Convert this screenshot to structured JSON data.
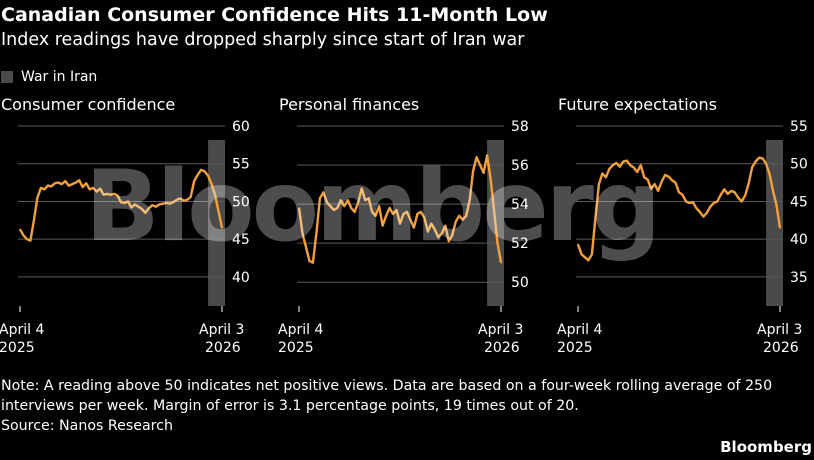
{
  "header": {
    "title": "Canadian Consumer Confidence Hits 11-Month Low",
    "subtitle": "Index readings have dropped sharply since start of Iran war"
  },
  "legend": {
    "war_label": "War in Iran"
  },
  "colors": {
    "line": "#f2a03d",
    "war_band": "#4a4a4a",
    "grid": "#5a5a5a",
    "background": "#000000"
  },
  "chart_data": [
    {
      "type": "line",
      "title": "Consumer confidence",
      "x_labels": [
        {
          "line1": "April 4",
          "line2": "2025"
        },
        {
          "line1": "April 3",
          "line2": "2026"
        }
      ],
      "yticks": [
        40,
        45,
        50,
        55,
        60
      ],
      "ylim": [
        38,
        60
      ],
      "war_start_index": 54,
      "values": [
        46.3,
        45.5,
        45.0,
        44.8,
        47.5,
        50.5,
        51.8,
        51.6,
        52.1,
        52.0,
        52.4,
        52.5,
        52.3,
        52.7,
        52.1,
        52.3,
        52.5,
        52.8,
        51.9,
        52.4,
        51.6,
        51.8,
        51.3,
        51.7,
        50.9,
        51.0,
        50.9,
        51.0,
        50.8,
        49.9,
        49.8,
        50.0,
        49.2,
        49.6,
        49.3,
        49.0,
        48.5,
        49.1,
        49.5,
        49.3,
        49.6,
        49.7,
        49.8,
        49.7,
        49.9,
        50.2,
        50.4,
        50.1,
        50.2,
        50.6,
        52.7,
        53.5,
        54.2,
        54.0,
        53.4,
        52.3,
        50.9,
        48.7,
        46.5
      ]
    },
    {
      "type": "line",
      "title": "Personal finances",
      "x_labels": [
        {
          "line1": "April 4",
          "line2": "2025"
        },
        {
          "line1": "April 3",
          "line2": "2026"
        }
      ],
      "yticks": [
        50,
        52,
        54,
        56,
        58
      ],
      "ylim": [
        49.5,
        58
      ],
      "war_start_index": 54,
      "values": [
        53.8,
        52.5,
        51.8,
        51.1,
        51.0,
        52.5,
        54.3,
        54.6,
        54.1,
        53.9,
        53.7,
        53.8,
        54.2,
        53.9,
        54.2,
        53.8,
        53.6,
        54.1,
        54.8,
        54.2,
        54.3,
        53.6,
        53.4,
        53.9,
        52.9,
        53.4,
        53.8,
        53.5,
        53.7,
        53.0,
        53.5,
        53.6,
        53.2,
        52.8,
        53.5,
        53.6,
        53.3,
        52.6,
        53.0,
        52.7,
        52.3,
        52.5,
        52.9,
        52.1,
        52.4,
        53.1,
        53.4,
        53.2,
        53.4,
        54.2,
        55.7,
        56.4,
        56.0,
        55.6,
        56.5,
        55.3,
        53.7,
        52.0,
        51.0
      ]
    },
    {
      "type": "line",
      "title": "Future expectations",
      "x_labels": [
        {
          "line1": "April 4",
          "line2": "2025"
        },
        {
          "line1": "April 3",
          "line2": "2026"
        }
      ],
      "yticks": [
        35,
        40,
        45,
        50,
        55
      ],
      "ylim": [
        33,
        55
      ],
      "war_start_index": 54,
      "values": [
        39.3,
        38.0,
        37.6,
        37.2,
        38.0,
        42.8,
        47.3,
        48.7,
        48.2,
        49.3,
        49.8,
        50.1,
        49.6,
        50.3,
        50.4,
        49.8,
        49.5,
        48.9,
        49.8,
        48.2,
        47.9,
        46.7,
        47.3,
        46.4,
        47.6,
        48.5,
        48.3,
        47.8,
        47.5,
        46.2,
        45.9,
        45.0,
        44.8,
        44.9,
        44.1,
        43.6,
        43.0,
        43.5,
        44.3,
        44.8,
        45.0,
        45.9,
        46.6,
        46.0,
        46.4,
        46.2,
        45.5,
        45.0,
        45.8,
        47.4,
        49.5,
        50.3,
        50.8,
        50.7,
        50.0,
        48.6,
        46.4,
        44.5,
        41.5
      ]
    }
  ],
  "footer": {
    "note": "Note: A reading above 50 indicates net positive views. Data are based on a four-week rolling average of 250 interviews per week. Margin of error is 3.1 percentage points, 19 times out of 20.",
    "source": "Source: Nanos Research",
    "brand": "Bloomberg",
    "watermark": "Bloomberg"
  }
}
